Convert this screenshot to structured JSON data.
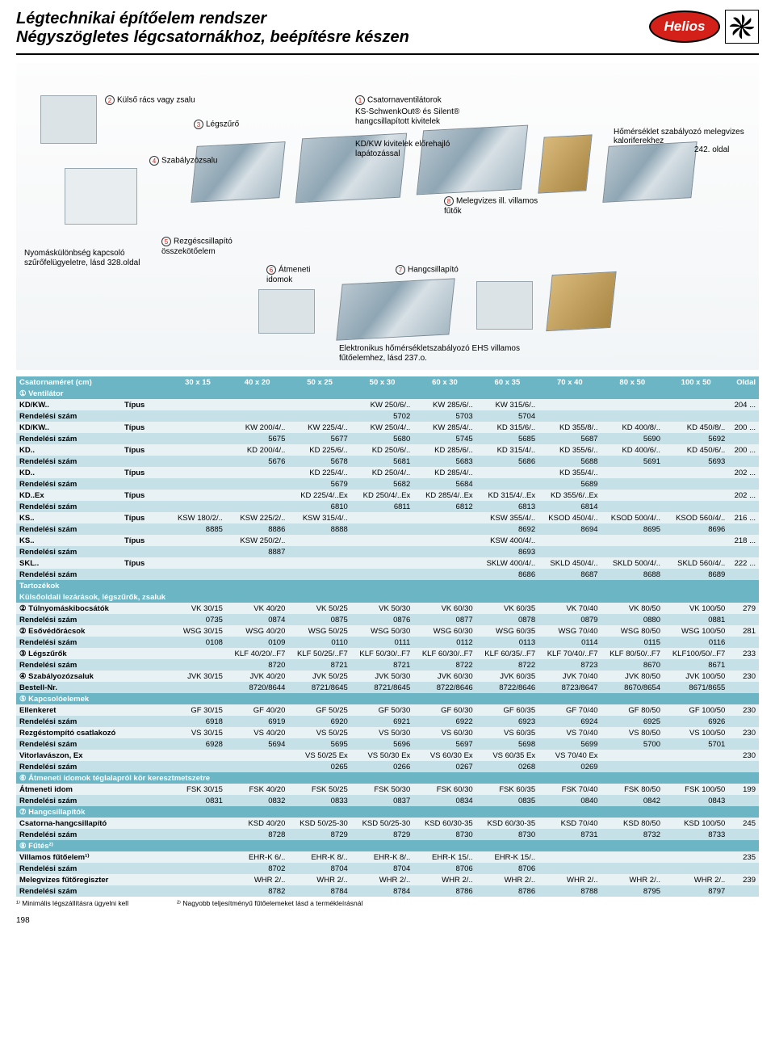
{
  "title_line1": "Légtechnikai építőelem rendszer",
  "title_line2": "Négyszögletes légcsatornákhoz, beépítésre készen",
  "logo_text": "Helios",
  "diagram": {
    "l2": "Külső rács vagy zsalu",
    "l3": "Légszűrő",
    "l4": "Szabályzózsalu",
    "l1": "Csatornaventilátorok",
    "l1b": "KS-SchwenkOut® és Silent® hangcsillapított kivitelek",
    "l1c": "KD/KW kivitelek előrehajló lapátozással",
    "l5": "Rezgéscsillapító összekötőelem",
    "l6": "Átmeneti idomok",
    "l7": "Hangcsillapító",
    "l8": "Melegvizes ill. villamos fűtők",
    "lp": "Nyomáskülönbség kapcsoló szűrőfelügyeletre, lásd 328.oldal",
    "right": "Hőmérséklet szabályozó melegvizes kaloriferekhez",
    "right_page": "242. oldal",
    "ehs": "Elektronikus hőmérsékletszabályozó EHS villamos fűtőelemhez, lásd 237.o."
  },
  "head": [
    "Csatornaméret (cm)",
    "30 x 15",
    "40 x 20",
    "50 x 25",
    "50 x 30",
    "60 x 30",
    "60 x 35",
    "70 x 40",
    "80 x 50",
    "100 x 50",
    "Oldal"
  ],
  "sections": {
    "vent": "① Ventilátor",
    "tart": "Tartozékok",
    "kulso": "Külsőoldali lezárások, légszűrők, zsaluk",
    "kapcs": "⑤ Kapcsolóelemek",
    "atm": "⑥ Átmeneti idomok téglalapról kör keresztmetszetre",
    "hang": "⑦ Hangcsillapítók",
    "futes": "⑧ Fűtés²⁾"
  },
  "rows": [
    {
      "c": "light",
      "l": "KD/KW..",
      "t": "Típus",
      "d": [
        "",
        "",
        "",
        "KW 250/6/..",
        "KW 285/6/..",
        "KW 315/6/..",
        "",
        "",
        "",
        "204 ..."
      ]
    },
    {
      "c": "dark",
      "l": "Rendelési szám",
      "t": "",
      "d": [
        "",
        "",
        "",
        "5702",
        "5703",
        "5704",
        "",
        "",
        "",
        ""
      ]
    },
    {
      "c": "light",
      "l": "KD/KW..",
      "t": "Típus",
      "d": [
        "",
        "KW 200/4/..",
        "KW 225/4/..",
        "KW 250/4/..",
        "KW 285/4/..",
        "KD 315/6/..",
        "KD 355/8/..",
        "KD 400/8/..",
        "KD 450/8/..",
        "200 ..."
      ]
    },
    {
      "c": "dark",
      "l": "Rendelési szám",
      "t": "",
      "d": [
        "",
        "5675",
        "5677",
        "5680",
        "5745",
        "5685",
        "5687",
        "5690",
        "5692",
        ""
      ]
    },
    {
      "c": "light",
      "l": "KD..",
      "t": "Típus",
      "d": [
        "",
        "KD 200/4/..",
        "KD 225/6/..",
        "KD 250/6/..",
        "KD 285/6/..",
        "KD 315/4/..",
        "KD 355/6/..",
        "KD 400/6/..",
        "KD 450/6/..",
        "200 ..."
      ]
    },
    {
      "c": "dark",
      "l": "Rendelési szám",
      "t": "",
      "d": [
        "",
        "5676",
        "5678",
        "5681",
        "5683",
        "5686",
        "5688",
        "5691",
        "5693",
        ""
      ]
    },
    {
      "c": "light",
      "l": "KD..",
      "t": "Típus",
      "d": [
        "",
        "",
        "KD 225/4/..",
        "KD 250/4/..",
        "KD 285/4/..",
        "",
        "KD 355/4/..",
        "",
        "",
        "202 ..."
      ]
    },
    {
      "c": "dark",
      "l": "Rendelési szám",
      "t": "",
      "d": [
        "",
        "",
        "5679",
        "5682",
        "5684",
        "",
        "5689",
        "",
        "",
        ""
      ]
    },
    {
      "c": "light",
      "l": "KD..Ex",
      "t": "Típus",
      "d": [
        "",
        "",
        "KD 225/4/..Ex",
        "KD 250/4/..Ex",
        "KD 285/4/..Ex",
        "KD 315/4/..Ex",
        "KD 355/6/..Ex",
        "",
        "",
        "202 ..."
      ]
    },
    {
      "c": "dark",
      "l": "Rendelési szám",
      "t": "",
      "d": [
        "",
        "",
        "6810",
        "6811",
        "6812",
        "6813",
        "6814",
        "",
        "",
        ""
      ]
    },
    {
      "c": "light",
      "l": "KS..",
      "t": "Típus",
      "d": [
        "KSW 180/2/..",
        "KSW 225/2/..",
        "KSW 315/4/..",
        "",
        "",
        "KSW 355/4/..",
        "KSOD 450/4/..",
        "KSOD 500/4/..",
        "KSOD 560/4/..",
        "216 ..."
      ]
    },
    {
      "c": "dark",
      "l": "Rendelési szám",
      "t": "",
      "d": [
        "8885",
        "8886",
        "8888",
        "",
        "",
        "8692",
        "8694",
        "8695",
        "8696",
        ""
      ]
    },
    {
      "c": "light",
      "l": "KS..",
      "t": "Típus",
      "d": [
        "",
        "KSW 250/2/..",
        "",
        "",
        "",
        "KSW 400/4/..",
        "",
        "",
        "",
        "218 ..."
      ]
    },
    {
      "c": "dark",
      "l": "Rendelési szám",
      "t": "",
      "d": [
        "",
        "8887",
        "",
        "",
        "",
        "8693",
        "",
        "",
        "",
        ""
      ]
    },
    {
      "c": "light",
      "l": "SKL..",
      "t": "Típus",
      "d": [
        "",
        "",
        "",
        "",
        "",
        "SKLW 400/4/..",
        "SKLD 450/4/..",
        "SKLD 500/4/..",
        "SKLD 560/4/..",
        "222 ..."
      ]
    },
    {
      "c": "dark",
      "l": "Rendelési szám",
      "t": "",
      "d": [
        "",
        "",
        "",
        "",
        "",
        "8686",
        "8687",
        "8688",
        "8689",
        ""
      ]
    }
  ],
  "rows2": [
    {
      "c": "light",
      "l": "② Túlnyomáskibocsátók",
      "t": "",
      "d": [
        "VK 30/15",
        "VK 40/20",
        "VK 50/25",
        "VK 50/30",
        "VK 60/30",
        "VK 60/35",
        "VK 70/40",
        "VK 80/50",
        "VK 100/50",
        "279"
      ]
    },
    {
      "c": "dark",
      "l": "Rendelési szám",
      "t": "",
      "d": [
        "0735",
        "0874",
        "0875",
        "0876",
        "0877",
        "0878",
        "0879",
        "0880",
        "0881",
        ""
      ]
    },
    {
      "c": "light",
      "l": "② Esővédőrácsok",
      "t": "",
      "d": [
        "WSG 30/15",
        "WSG 40/20",
        "WSG 50/25",
        "WSG 50/30",
        "WSG 60/30",
        "WSG 60/35",
        "WSG 70/40",
        "WSG 80/50",
        "WSG 100/50",
        "281"
      ]
    },
    {
      "c": "dark",
      "l": "Rendelési szám",
      "t": "",
      "d": [
        "0108",
        "0109",
        "0110",
        "0111",
        "0112",
        "0113",
        "0114",
        "0115",
        "0116",
        ""
      ]
    },
    {
      "c": "light",
      "l": "③ Légszűrők",
      "t": "",
      "d": [
        "",
        "KLF 40/20/..F7",
        "KLF 50/25/..F7",
        "KLF 50/30/..F7",
        "KLF 60/30/..F7",
        "KLF 60/35/..F7",
        "KLF 70/40/..F7",
        "KLF 80/50/..F7",
        "KLF100/50/..F7",
        "233"
      ]
    },
    {
      "c": "dark",
      "l": "Rendelési szám",
      "t": "",
      "d": [
        "",
        "8720",
        "8721",
        "8721",
        "8722",
        "8722",
        "8723",
        "8670",
        "8671",
        ""
      ]
    },
    {
      "c": "light",
      "l": "④ Szabályozózsaluk",
      "t": "",
      "d": [
        "JVK 30/15",
        "JVK 40/20",
        "JVK 50/25",
        "JVK 50/30",
        "JVK 60/30",
        "JVK 60/35",
        "JVK 70/40",
        "JVK 80/50",
        "JVK 100/50",
        "230"
      ]
    },
    {
      "c": "dark",
      "l": "Bestell-Nr.",
      "t": "",
      "d": [
        "",
        "8720/8644",
        "8721/8645",
        "8721/8645",
        "8722/8646",
        "8722/8646",
        "8723/8647",
        "8670/8654",
        "8671/8655",
        ""
      ]
    }
  ],
  "rows3": [
    {
      "c": "light",
      "l": "Ellenkeret",
      "t": "",
      "d": [
        "GF 30/15",
        "GF 40/20",
        "GF 50/25",
        "GF 50/30",
        "GF 60/30",
        "GF 60/35",
        "GF 70/40",
        "GF 80/50",
        "GF 100/50",
        "230"
      ]
    },
    {
      "c": "dark",
      "l": "Rendelési szám",
      "t": "",
      "d": [
        "6918",
        "6919",
        "6920",
        "6921",
        "6922",
        "6923",
        "6924",
        "6925",
        "6926",
        ""
      ]
    },
    {
      "c": "light",
      "l": "Rezgéstompító csatlakozó",
      "t": "",
      "d": [
        "VS 30/15",
        "VS 40/20",
        "VS 50/25",
        "VS 50/30",
        "VS 60/30",
        "VS 60/35",
        "VS 70/40",
        "VS 80/50",
        "VS 100/50",
        "230"
      ]
    },
    {
      "c": "dark",
      "l": "Rendelési szám",
      "t": "",
      "d": [
        "6928",
        "5694",
        "5695",
        "5696",
        "5697",
        "5698",
        "5699",
        "5700",
        "5701",
        ""
      ]
    },
    {
      "c": "light",
      "l": "Vitorlavászon, Ex",
      "t": "",
      "d": [
        "",
        "",
        "VS 50/25 Ex",
        "VS 50/30 Ex",
        "VS 60/30 Ex",
        "VS 60/35 Ex",
        "VS 70/40 Ex",
        "",
        "",
        "230"
      ]
    },
    {
      "c": "dark",
      "l": "Rendelési szám",
      "t": "",
      "d": [
        "",
        "",
        "0265",
        "0266",
        "0267",
        "0268",
        "0269",
        "",
        "",
        ""
      ]
    }
  ],
  "rows4": [
    {
      "c": "light",
      "l": "Átmeneti idom",
      "t": "",
      "d": [
        "FSK 30/15",
        "FSK 40/20",
        "FSK 50/25",
        "FSK 50/30",
        "FSK 60/30",
        "FSK 60/35",
        "FSK 70/40",
        "FSK 80/50",
        "FSK 100/50",
        "199"
      ]
    },
    {
      "c": "dark",
      "l": "Rendelési szám",
      "t": "",
      "d": [
        "0831",
        "0832",
        "0833",
        "0837",
        "0834",
        "0835",
        "0840",
        "0842",
        "0843",
        ""
      ]
    }
  ],
  "rows5": [
    {
      "c": "light",
      "l": "Csatorna-hangcsillapító",
      "t": "",
      "d": [
        "",
        "KSD 40/20",
        "KSD 50/25-30",
        "KSD 50/25-30",
        "KSD 60/30-35",
        "KSD 60/30-35",
        "KSD 70/40",
        "KSD 80/50",
        "KSD 100/50",
        "245"
      ]
    },
    {
      "c": "dark",
      "l": "Rendelési szám",
      "t": "",
      "d": [
        "",
        "8728",
        "8729",
        "8729",
        "8730",
        "8730",
        "8731",
        "8732",
        "8733",
        ""
      ]
    }
  ],
  "rows6": [
    {
      "c": "light",
      "l": "Villamos fűtőelem¹⁾",
      "t": "",
      "d": [
        "",
        "EHR-K 6/..",
        "EHR-K 8/..",
        "EHR-K 8/..",
        "EHR-K 15/..",
        "EHR-K 15/..",
        "",
        "",
        "",
        "235"
      ]
    },
    {
      "c": "dark",
      "l": "Rendelési szám",
      "t": "",
      "d": [
        "",
        "8702",
        "8704",
        "8704",
        "8706",
        "8706",
        "",
        "",
        "",
        ""
      ]
    },
    {
      "c": "light",
      "l": "Melegvizes fűtőregiszter",
      "t": "",
      "d": [
        "",
        "WHR 2/..",
        "WHR 2/..",
        "WHR 2/..",
        "WHR 2/..",
        "WHR 2/..",
        "WHR 2/..",
        "WHR 2/..",
        "WHR 2/..",
        "239"
      ]
    },
    {
      "c": "dark",
      "l": "Rendelési szám",
      "t": "",
      "d": [
        "",
        "8782",
        "8784",
        "8784",
        "8786",
        "8786",
        "8788",
        "8795",
        "8797",
        ""
      ]
    }
  ],
  "footnote1": "¹⁾ Minimális légszállításra ügyelni kell",
  "footnote2": "²⁾ Nagyobb teljesítményű fűtőelemeket lásd a termékleírásnál",
  "page_num": "198"
}
